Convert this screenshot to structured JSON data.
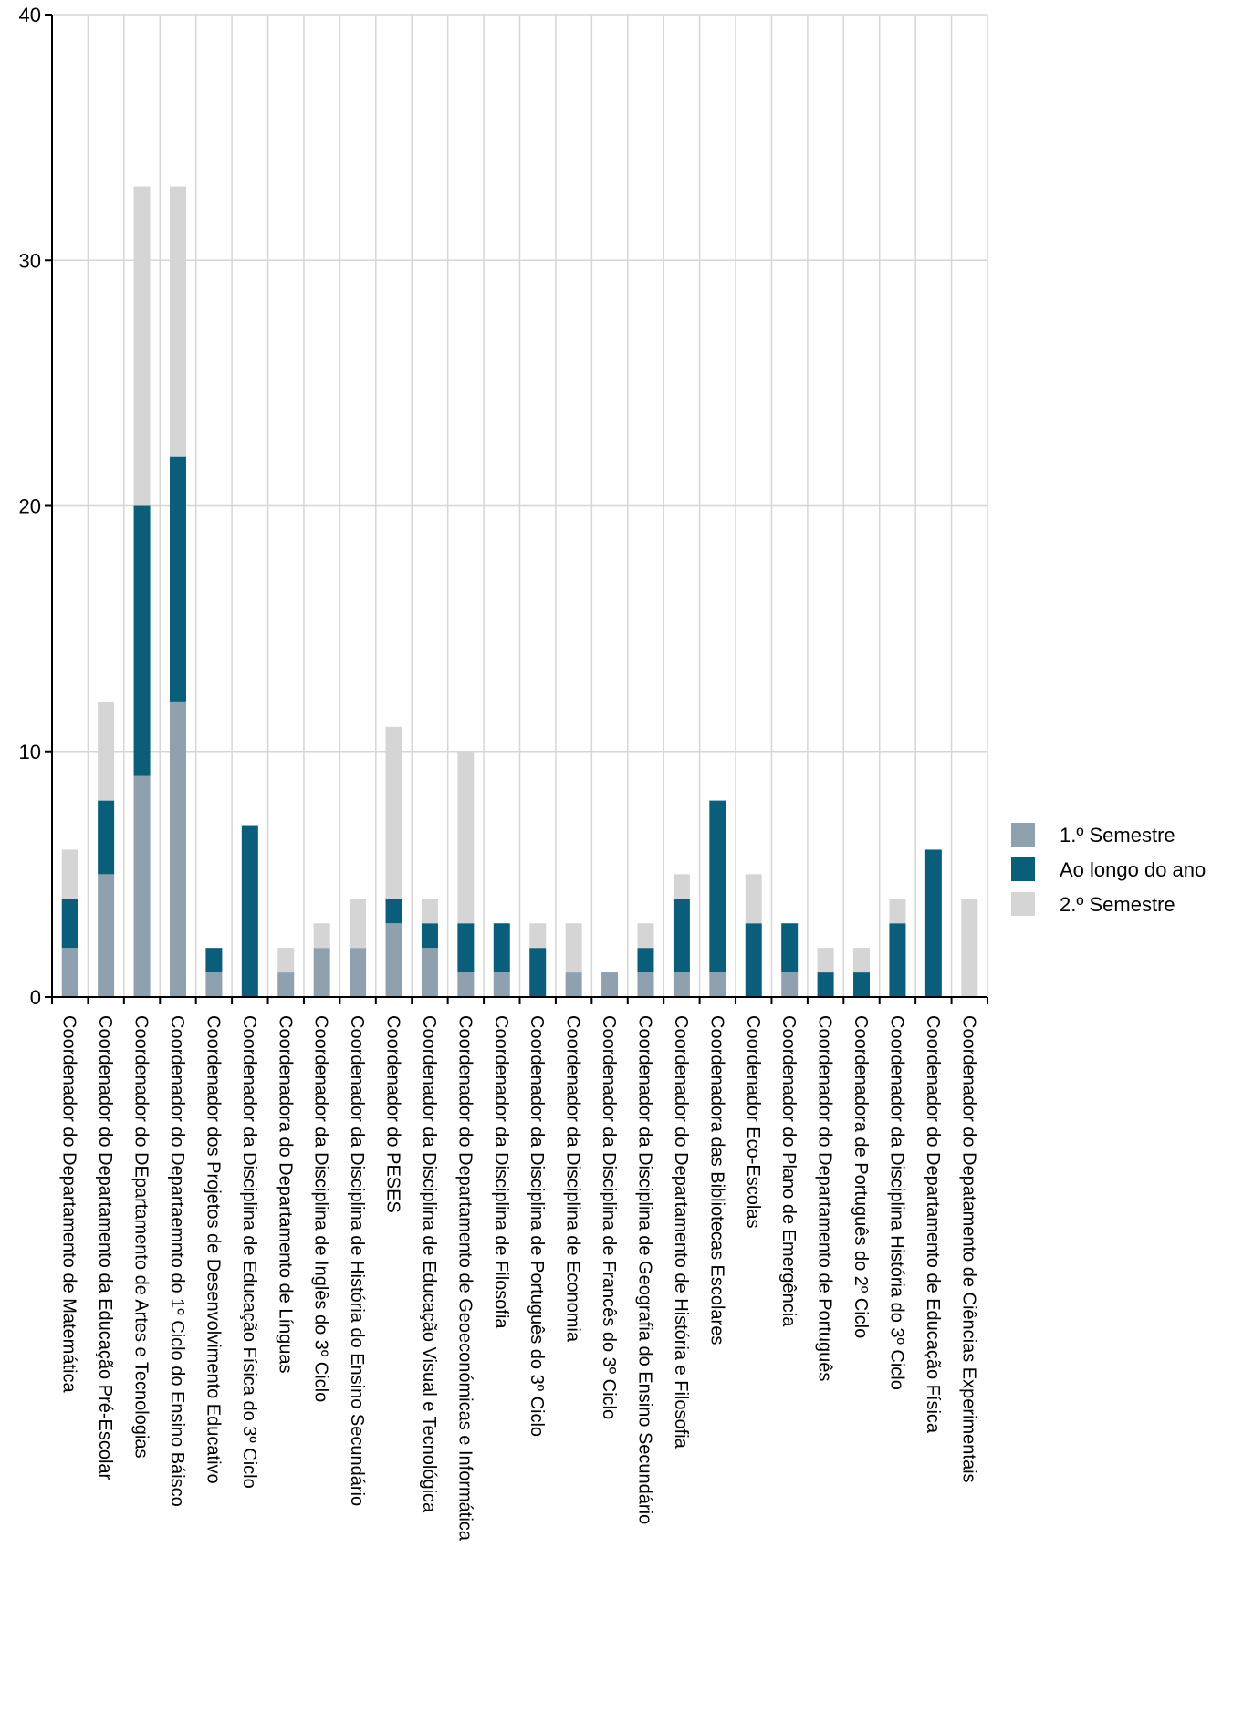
{
  "chart_data": {
    "type": "bar",
    "stacked": true,
    "title": "",
    "xlabel": "",
    "ylabel": "",
    "ylim": [
      0,
      40
    ],
    "yticks": [
      0,
      10,
      20,
      30,
      40
    ],
    "grid": true,
    "legend_position": "right",
    "categories": [
      "Coordenador do Departamento de Matemática",
      "Coordenador do Departamento da Educação Pré-Escolar",
      "Coordenador do DEpartamento de Artes e Tecnologias",
      "Coordenador do Departaemnto do 1º Ciclo do Ensino Báisco",
      "Coordenador dos Projetos de Desenvolvimento Educativo",
      "Coordenador da Disciplina de Educação Física do 3º Ciclo",
      "Coordenadora do Departamento de Línguas",
      "Coordenador da Disciplina de Inglês do 3º Ciclo",
      "Coordenador da Disciplina de História do Ensino Secundário",
      "Coordenador do PESES",
      "Coordenador da Disciplina de Educação Visual e Tecnológica",
      "Coordenador do Departamento de Geoeconómicas e Informática",
      "Coordenador da Disciplina de Filosofia",
      "Coordenador da Disciplina de Português do 3º Ciclo",
      "Coordenador da Disciplina de Economia",
      "Coordenador da Disciplina de Francês do 3º Ciclo",
      "Coordenador da Disciplina de Geografia do Ensino Secundário",
      "Coordenador do Departamento de História e Filosofia",
      "Coordenadora das Bibliotecas Escolares",
      "Coordenador Eco-Escolas",
      "Coordenador do Plano de Emergência",
      "Coordenador do Departamento de Português",
      "Coordenadora de Português do 2º Ciclo",
      "Coordenador da Disciplina História do 3º Ciclo",
      "Coordenador do Departamento de Educação Física",
      "Coordenador do Depatamento de Ciências Experimentais"
    ],
    "series": [
      {
        "name": "1.º Semestre",
        "color": "#8fa1ae",
        "values": [
          2,
          5,
          9,
          12,
          1,
          0,
          1,
          2,
          2,
          3,
          2,
          1,
          1,
          0,
          1,
          1,
          1,
          1,
          1,
          0,
          1,
          0,
          0,
          0,
          0,
          0
        ]
      },
      {
        "name": "Ao longo do ano",
        "color": "#0b5e7a",
        "values": [
          2,
          3,
          11,
          10,
          1,
          7,
          0,
          0,
          0,
          1,
          1,
          2,
          2,
          2,
          0,
          0,
          1,
          3,
          7,
          3,
          2,
          1,
          1,
          3,
          6,
          0
        ]
      },
      {
        "name": "2.º Semestre",
        "color": "#d5d5d5",
        "values": [
          2,
          4,
          13,
          11,
          0,
          0,
          1,
          1,
          2,
          7,
          1,
          7,
          0,
          1,
          2,
          0,
          1,
          1,
          0,
          2,
          0,
          1,
          1,
          1,
          0,
          4
        ]
      }
    ]
  }
}
